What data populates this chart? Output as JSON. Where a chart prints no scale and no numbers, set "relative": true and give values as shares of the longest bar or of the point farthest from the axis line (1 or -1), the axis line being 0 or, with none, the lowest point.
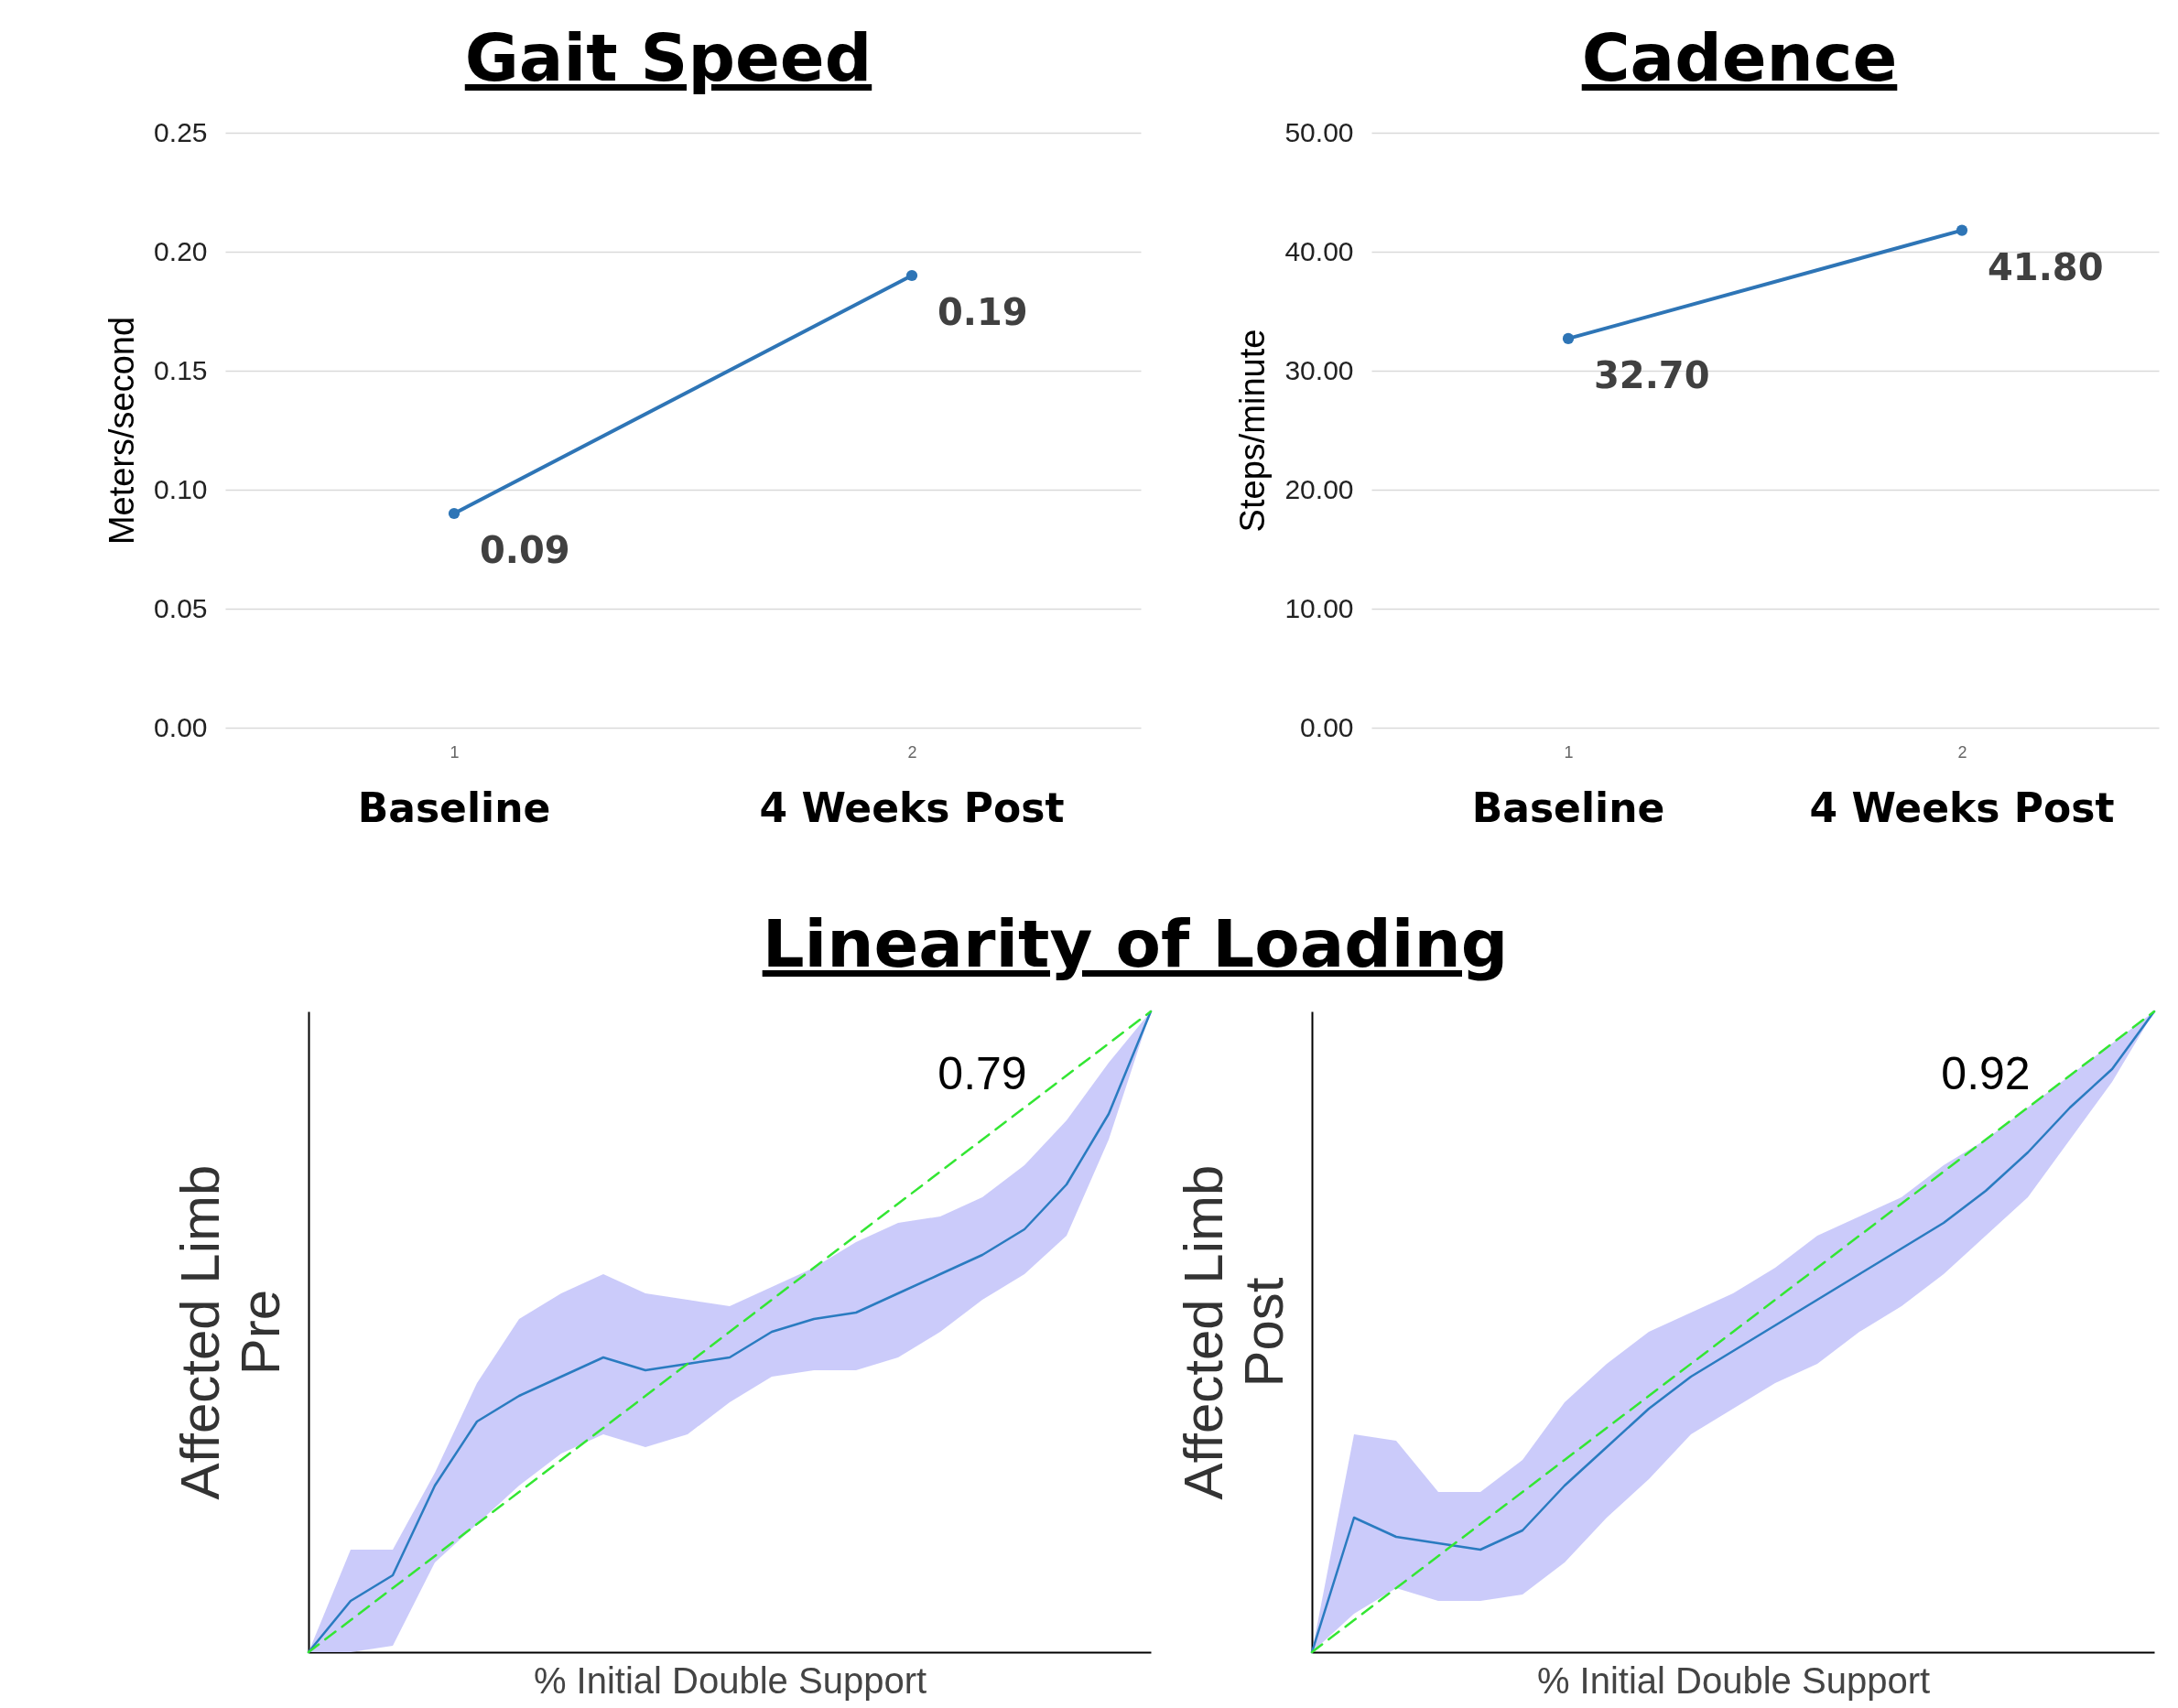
{
  "chart_data": [
    {
      "type": "line",
      "title": "Gait Speed",
      "ylabel": "Meters/second",
      "categories": [
        "1",
        "2"
      ],
      "ylim": [
        0,
        0.25
      ],
      "yticks": [
        {
          "value": 0,
          "label": "0.00"
        },
        {
          "value": 0.05,
          "label": "0.05"
        },
        {
          "value": 0.1,
          "label": "0.10"
        },
        {
          "value": 0.15,
          "label": "0.15"
        },
        {
          "value": 0.2,
          "label": "0.20"
        },
        {
          "value": 0.25,
          "label": "0.25"
        }
      ],
      "grid": "y",
      "marker": "circle",
      "data_labels": true,
      "series": [
        {
          "color": "#2e75b6",
          "values": [
            0.09,
            0.19
          ]
        }
      ],
      "annotations": [
        "Baseline",
        "4 Weeks Post"
      ]
    },
    {
      "type": "line",
      "title": "Cadence",
      "ylabel": "Steps/minute",
      "categories": [
        "1",
        "2"
      ],
      "ylim": [
        0,
        50
      ],
      "yticks": [
        {
          "value": 0,
          "label": "0.00"
        },
        {
          "value": 10,
          "label": "10.00"
        },
        {
          "value": 20,
          "label": "20.00"
        },
        {
          "value": 30,
          "label": "30.00"
        },
        {
          "value": 40,
          "label": "40.00"
        },
        {
          "value": 50,
          "label": "50.00"
        }
      ],
      "grid": "y",
      "marker": "circle",
      "series": [
        {
          "color": "#2e75b6",
          "values": [
            32.7,
            41.8
          ],
          "value_labels": [
            "32.70",
            "41.80"
          ]
        }
      ],
      "annotations": [
        "Baseline",
        "4 Weeks Post"
      ]
    },
    {
      "type": "line",
      "title": "Linearity of Loading",
      "xlabel": "% Initial Double Support",
      "ylabel": "Affected Limb\nPre",
      "relative": true,
      "categories": [
        null,
        null,
        null,
        null,
        null,
        null,
        null,
        null,
        null,
        null,
        null,
        null,
        null,
        null,
        null,
        null,
        null,
        null,
        null,
        null,
        null
      ],
      "series": [
        {
          "color": "#2a7bc0",
          "values": [
            0,
            0.08,
            0.12,
            0.26,
            0.36,
            0.4,
            0.43,
            0.46,
            0.44,
            0.45,
            0.46,
            0.5,
            0.52,
            0.53,
            0.56,
            0.59,
            0.62,
            0.66,
            0.73,
            0.84,
            1
          ],
          "lower": [
            0,
            0,
            0.01,
            0.14,
            0.2,
            0.26,
            0.31,
            0.34,
            0.32,
            0.34,
            0.39,
            0.43,
            0.44,
            0.44,
            0.46,
            0.5,
            0.55,
            0.59,
            0.65,
            0.8,
            1
          ],
          "upper": [
            0,
            0.16,
            0.16,
            0.28,
            0.42,
            0.52,
            0.56,
            0.59,
            0.56,
            0.55,
            0.54,
            0.57,
            0.6,
            0.64,
            0.67,
            0.68,
            0.71,
            0.76,
            0.83,
            0.92,
            1
          ]
        },
        {
          "color": "#33e633",
          "line_style": "dashed",
          "values": [
            0,
            0.05,
            0.1,
            0.15,
            0.2,
            0.25,
            0.3,
            0.35,
            0.4,
            0.45,
            0.5,
            0.55,
            0.6,
            0.65,
            0.7,
            0.75,
            0.8,
            0.85,
            0.9,
            0.95,
            1
          ]
        }
      ],
      "annotations": [
        "0.79"
      ]
    },
    {
      "type": "line",
      "xlabel": "% Initial Double Support",
      "ylabel": "Affected Limb\nPost",
      "relative": true,
      "categories": [
        null,
        null,
        null,
        null,
        null,
        null,
        null,
        null,
        null,
        null,
        null,
        null,
        null,
        null,
        null,
        null,
        null,
        null,
        null,
        null,
        null
      ],
      "series": [
        {
          "color": "#2a7bc0",
          "values": [
            0,
            0.21,
            0.18,
            0.17,
            0.16,
            0.19,
            0.26,
            0.32,
            0.38,
            0.43,
            0.47,
            0.51,
            0.55,
            0.59,
            0.63,
            0.67,
            0.72,
            0.78,
            0.85,
            0.91,
            1
          ],
          "lower": [
            0,
            0.06,
            0.1,
            0.08,
            0.08,
            0.09,
            0.14,
            0.21,
            0.27,
            0.34,
            0.38,
            0.42,
            0.45,
            0.5,
            0.54,
            0.59,
            0.65,
            0.71,
            0.8,
            0.89,
            1
          ],
          "upper": [
            0,
            0.34,
            0.33,
            0.25,
            0.25,
            0.3,
            0.39,
            0.45,
            0.5,
            0.53,
            0.56,
            0.6,
            0.65,
            0.68,
            0.71,
            0.76,
            0.8,
            0.85,
            0.9,
            0.95,
            1
          ]
        },
        {
          "color": "#33e633",
          "line_style": "dashed",
          "values": [
            0,
            0.05,
            0.1,
            0.15,
            0.2,
            0.25,
            0.3,
            0.35,
            0.4,
            0.45,
            0.5,
            0.55,
            0.6,
            0.65,
            0.7,
            0.75,
            0.8,
            0.85,
            0.9,
            0.95,
            1
          ]
        }
      ],
      "annotations": [
        "0.92"
      ]
    }
  ]
}
